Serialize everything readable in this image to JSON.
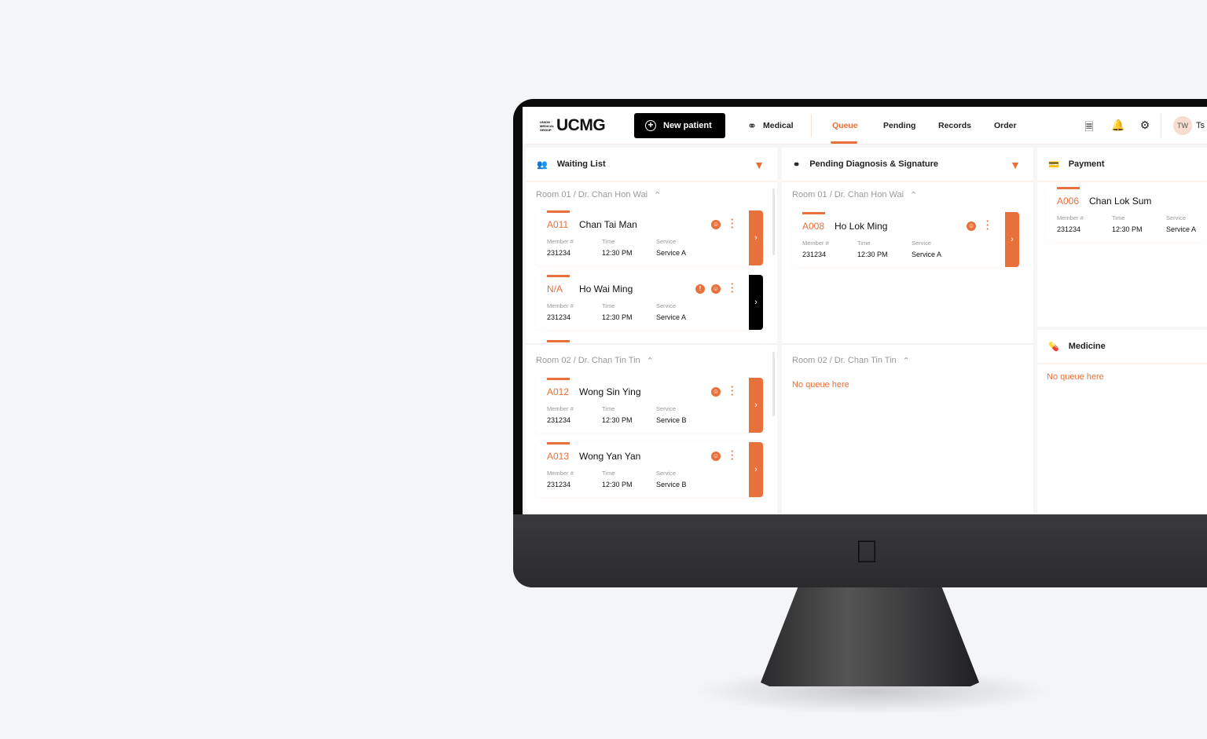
{
  "header": {
    "logo_small": "UNION MEDICAL GROUP",
    "logo": "UCMG",
    "new_patient": "New patient",
    "nav": {
      "medical": "Medical",
      "queue": "Queue",
      "pending": "Pending",
      "records": "Records",
      "order": "Order"
    },
    "active_tab": "Queue",
    "avatar_initials": "TW",
    "user_name_partial": "Ts"
  },
  "colors": {
    "accent": "#e8703a",
    "dark": "#000000"
  },
  "waiting_list": {
    "title": "Waiting List",
    "rooms": [
      {
        "label": "Room 01 / Dr. Chan Hon Wai",
        "cards": [
          {
            "code": "A011",
            "name": "Chan Tai Man",
            "member": "231234",
            "time": "12:30 PM",
            "service": "Service A",
            "alert": false,
            "dark": false
          },
          {
            "code": "N/A",
            "name": "Ho Wai Ming",
            "member": "231234",
            "time": "12:30 PM",
            "service": "Service A",
            "alert": true,
            "dark": true
          }
        ]
      },
      {
        "label": "Room 02 / Dr. Chan Tin Tin",
        "cards": [
          {
            "code": "A012",
            "name": "Wong Sin Ying",
            "member": "231234",
            "time": "12:30 PM",
            "service": "Service B",
            "alert": false,
            "dark": false
          },
          {
            "code": "A013",
            "name": "Wong Yan Yan",
            "member": "231234",
            "time": "12:30 PM",
            "service": "Service B",
            "alert": false,
            "dark": false
          }
        ]
      }
    ]
  },
  "pending": {
    "title": "Pending Diagnosis & Signature",
    "rooms": [
      {
        "label": "Room 01 / Dr. Chan Hon Wai",
        "cards": [
          {
            "code": "A008",
            "name": "Ho Lok Ming",
            "member": "231234",
            "time": "12:30 PM",
            "service": "Service A",
            "alert": false,
            "dark": false
          }
        ]
      },
      {
        "label": "Room 02 / Dr. Chan Tin Tin",
        "empty": "No queue here"
      }
    ]
  },
  "payment": {
    "title": "Payment",
    "card": {
      "code": "A006",
      "name": "Chan Lok Sum",
      "member": "231234",
      "time": "12:30 PM",
      "service": "Service A"
    }
  },
  "medicine": {
    "title": "Medicine",
    "empty": "No queue here"
  },
  "labels": {
    "member": "Member #",
    "time": "Time",
    "service": "Service"
  }
}
